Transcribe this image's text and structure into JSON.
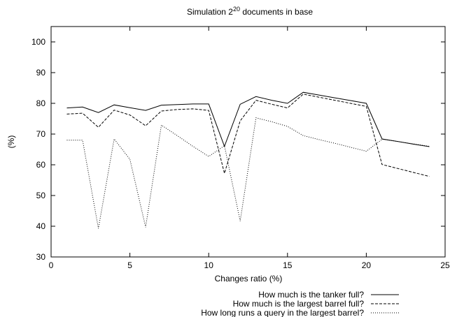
{
  "chart_data": {
    "type": "line",
    "title_prefix": "Simulation 2",
    "title_exp": "20",
    "title_suffix": " documents in base",
    "xlabel": "Changes ratio (%)",
    "ylabel": "(%)",
    "xlim": [
      0,
      25
    ],
    "ylim": [
      30,
      105
    ],
    "xticks": [
      0,
      5,
      10,
      15,
      20,
      25
    ],
    "yticks": [
      30,
      40,
      50,
      60,
      70,
      80,
      90,
      100
    ],
    "grid": false,
    "legend_position": "bottom-right, below plot",
    "series": [
      {
        "name": "How much is the tanker full?",
        "dash": "solid",
        "x": [
          1,
          2,
          3,
          4,
          5,
          6,
          7,
          8,
          9,
          10,
          11,
          12,
          13,
          14,
          15,
          16,
          17,
          18,
          19,
          20,
          21,
          22,
          23,
          24
        ],
        "y": [
          78.5,
          78.8,
          77.0,
          79.5,
          78.6,
          77.7,
          79.4,
          79.6,
          79.8,
          79.8,
          66.0,
          79.7,
          82.2,
          81.0,
          80.0,
          83.6,
          82.7,
          81.8,
          80.9,
          80.0,
          68.4,
          67.6,
          66.7,
          65.9
        ]
      },
      {
        "name": "How much is the largest barrel full?",
        "dash": "dashed",
        "x": [
          1,
          2,
          3,
          4,
          5,
          6,
          7,
          8,
          9,
          10,
          11,
          12,
          13,
          14,
          15,
          16,
          17,
          18,
          19,
          20,
          21,
          22,
          23,
          24
        ],
        "y": [
          76.5,
          76.8,
          72.2,
          77.8,
          76.2,
          72.7,
          77.5,
          78.0,
          78.2,
          77.7,
          57.2,
          74.3,
          81.0,
          79.7,
          78.5,
          83.0,
          82.0,
          81.0,
          80.0,
          79.0,
          60.1,
          58.8,
          57.5,
          56.2
        ]
      },
      {
        "name": "How long runs a query in the largest barrel?",
        "dash": "dotted",
        "x": [
          1,
          2,
          3,
          4,
          5,
          6,
          7,
          8,
          9,
          10,
          11,
          12,
          13,
          14,
          15,
          16,
          17,
          18,
          19,
          20,
          21,
          22,
          23,
          24
        ],
        "y": [
          68.0,
          68.0,
          39.3,
          68.4,
          61.8,
          39.7,
          72.9,
          69.5,
          66.0,
          62.7,
          66.2,
          41.7,
          75.3,
          74.0,
          72.5,
          69.5,
          68.2,
          67.0,
          65.7,
          64.4,
          68.3,
          67.6,
          66.8,
          66.0
        ]
      }
    ]
  }
}
